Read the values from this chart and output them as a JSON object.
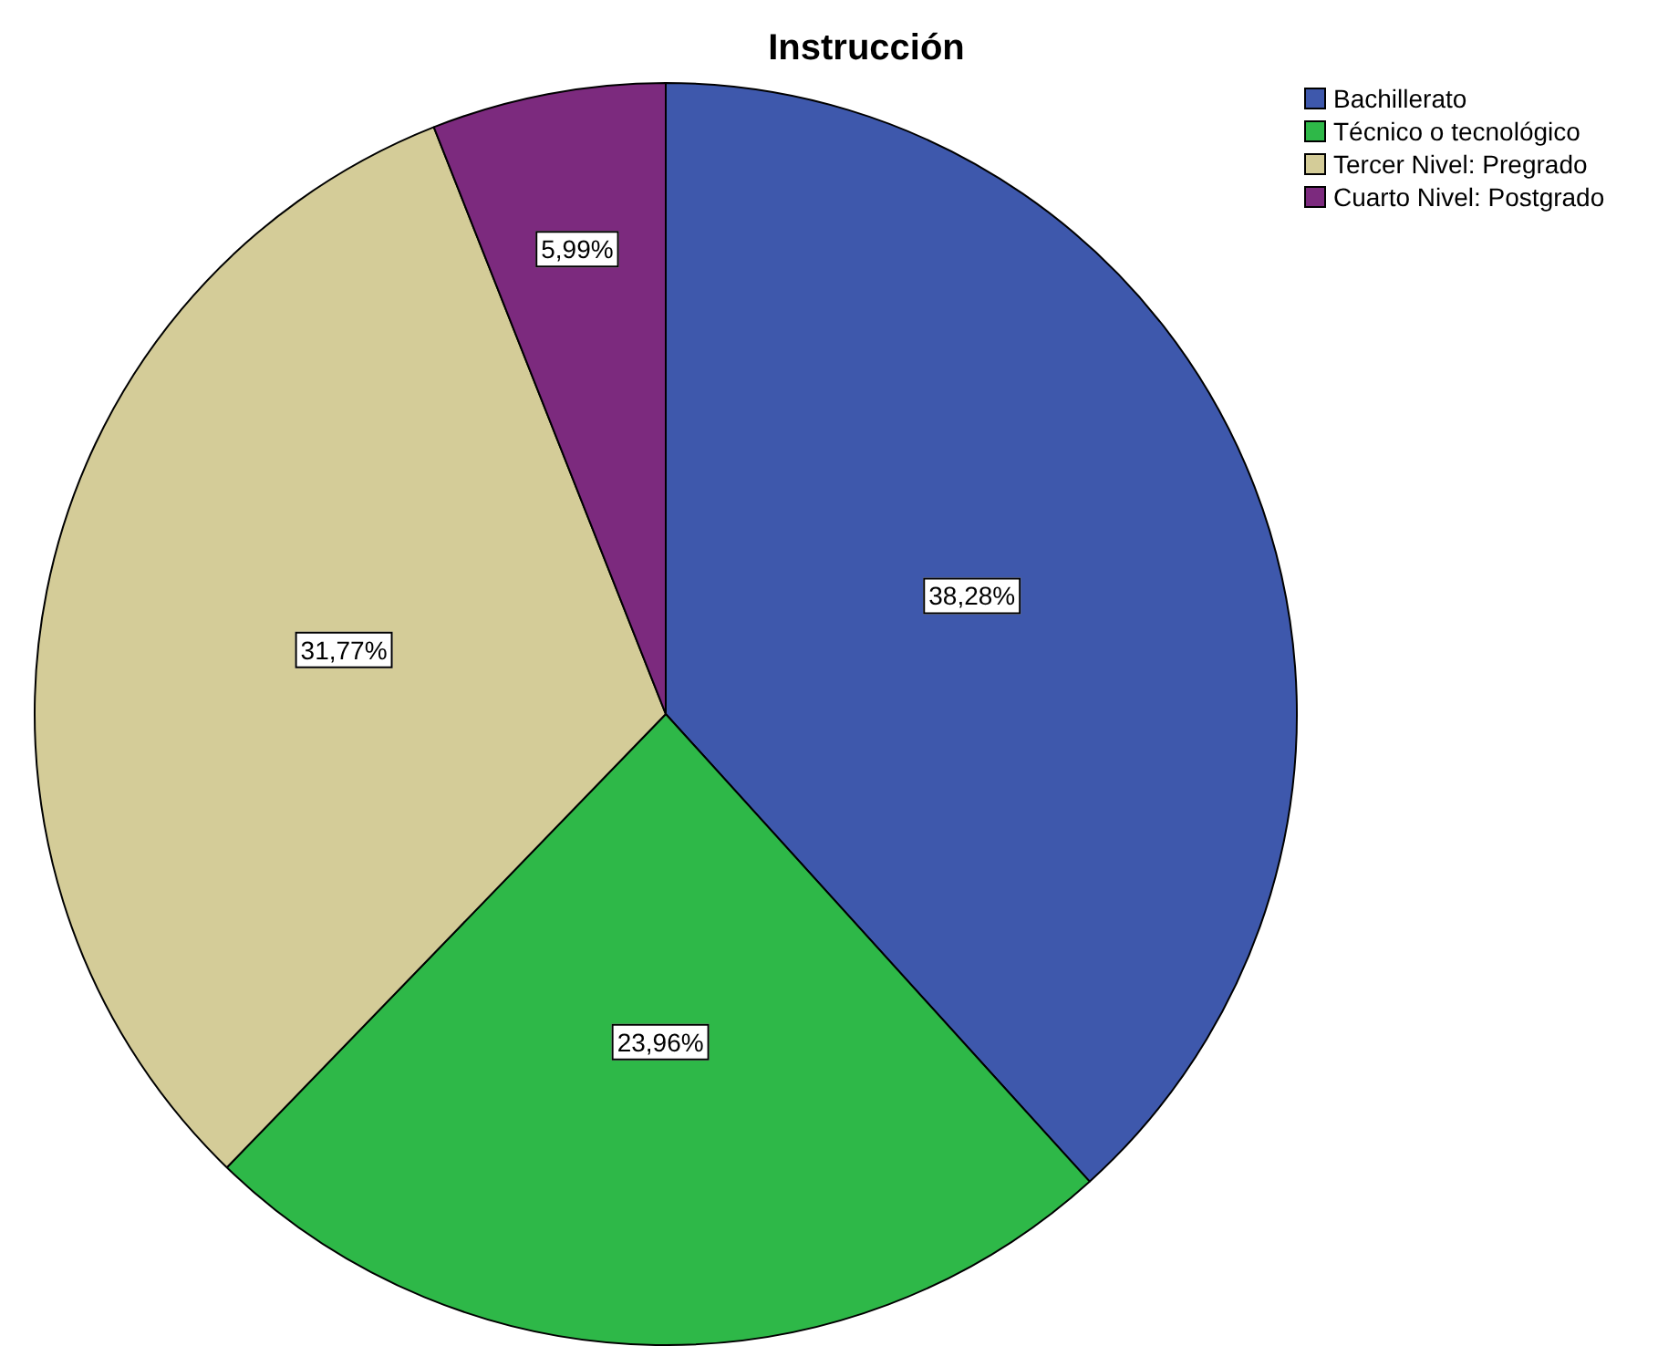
{
  "chart_data": {
    "type": "pie",
    "title": "Instrucción",
    "categories": [
      "Bachillerato",
      "Técnico o tecnológico",
      "Tercer Nivel: Pregrado",
      "Cuarto Nivel: Postgrado"
    ],
    "values": [
      38.28,
      23.96,
      31.77,
      5.99
    ],
    "colors": [
      "#3e58ac",
      "#2eb848",
      "#d4cc98",
      "#7c2a7e"
    ],
    "value_labels": [
      "38,28%",
      "23,96%",
      "31,77%",
      "5,99%"
    ],
    "legend": "top right"
  }
}
